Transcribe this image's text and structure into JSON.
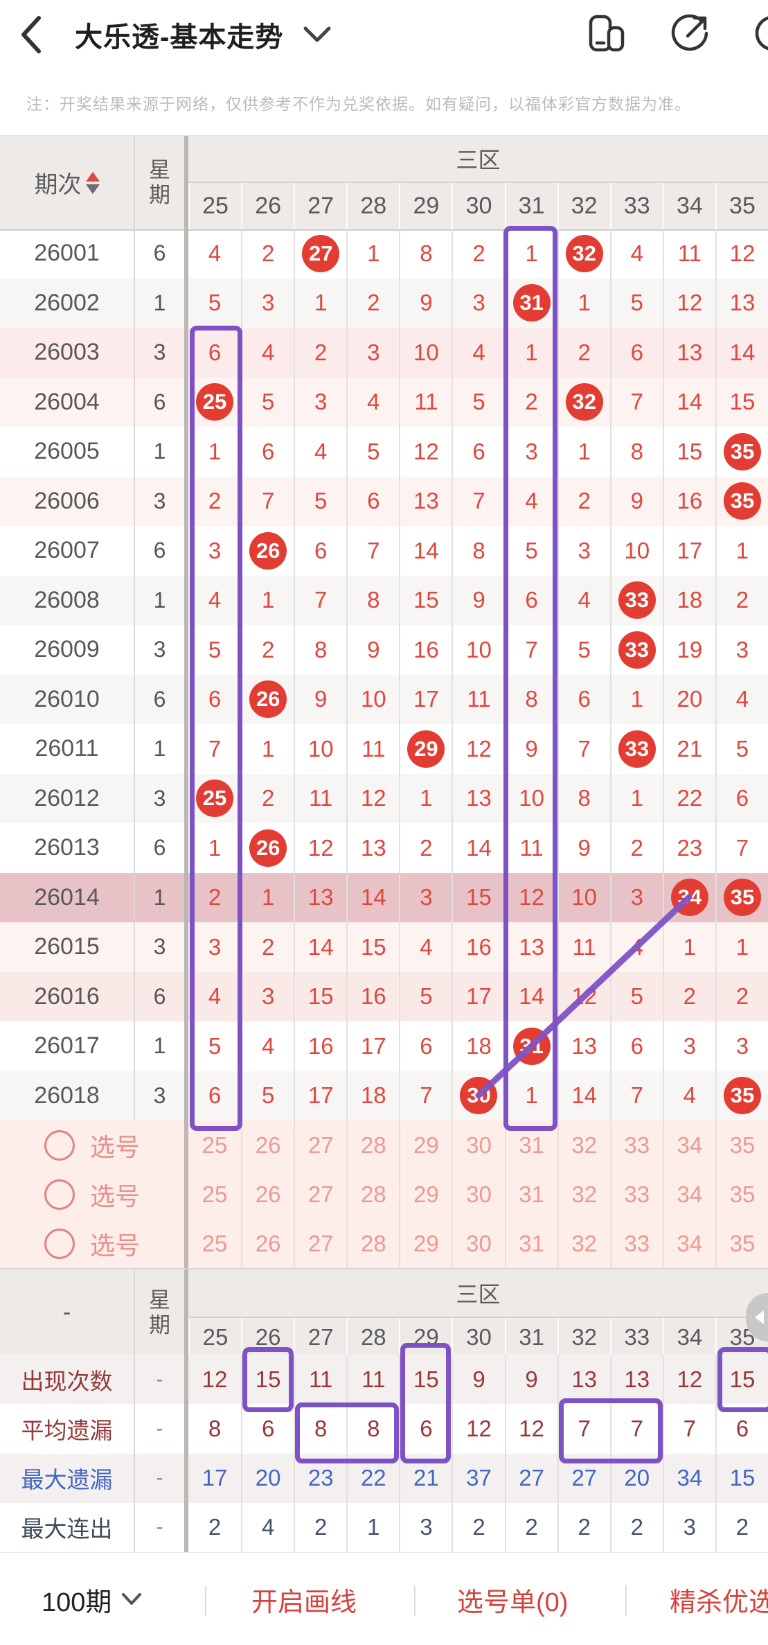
{
  "header": {
    "title": "大乐透-基本走势",
    "icons": [
      "back-icon",
      "dropdown-caret-icon",
      "multi-window-icon",
      "share-icon",
      "partial-circle-icon"
    ]
  },
  "notice": {
    "text": "注：开奖结果来源于网络，仅供参考不作为兑奖依据。如有疑问，以福体彩官方数据为准。"
  },
  "table": {
    "period_header": "期次",
    "week_header": "星期",
    "zone_header": "三区",
    "columns": [
      "25",
      "26",
      "27",
      "28",
      "29",
      "30",
      "31",
      "32",
      "33",
      "34",
      "35"
    ],
    "rows": [
      {
        "period": "26001",
        "week": "6",
        "cells": [
          "4",
          "2",
          "27",
          "1",
          "8",
          "2",
          "1",
          "32",
          "4",
          "11",
          "12"
        ],
        "balls": [
          2,
          7
        ],
        "bg": ""
      },
      {
        "period": "26002",
        "week": "1",
        "cells": [
          "5",
          "3",
          "1",
          "2",
          "9",
          "3",
          "31",
          "1",
          "5",
          "12",
          "13"
        ],
        "balls": [
          6
        ],
        "bg": "alt"
      },
      {
        "period": "26003",
        "week": "3",
        "cells": [
          "6",
          "4",
          "2",
          "3",
          "10",
          "4",
          "1",
          "2",
          "6",
          "13",
          "14"
        ],
        "balls": [],
        "bg": "pink3"
      },
      {
        "period": "26004",
        "week": "6",
        "cells": [
          "25",
          "5",
          "3",
          "4",
          "11",
          "5",
          "2",
          "32",
          "7",
          "14",
          "15"
        ],
        "balls": [
          0,
          7
        ],
        "bg": "pink1"
      },
      {
        "period": "26005",
        "week": "1",
        "cells": [
          "1",
          "6",
          "4",
          "5",
          "12",
          "6",
          "3",
          "1",
          "8",
          "15",
          "35"
        ],
        "balls": [
          10
        ],
        "bg": ""
      },
      {
        "period": "26006",
        "week": "3",
        "cells": [
          "2",
          "7",
          "5",
          "6",
          "13",
          "7",
          "4",
          "2",
          "9",
          "16",
          "35"
        ],
        "balls": [
          10
        ],
        "bg": "pink1"
      },
      {
        "period": "26007",
        "week": "6",
        "cells": [
          "3",
          "26",
          "6",
          "7",
          "14",
          "8",
          "5",
          "3",
          "10",
          "17",
          "1"
        ],
        "balls": [
          1
        ],
        "bg": ""
      },
      {
        "period": "26008",
        "week": "1",
        "cells": [
          "4",
          "1",
          "7",
          "8",
          "15",
          "9",
          "6",
          "4",
          "33",
          "18",
          "2"
        ],
        "balls": [
          8
        ],
        "bg": "alt"
      },
      {
        "period": "26009",
        "week": "3",
        "cells": [
          "5",
          "2",
          "8",
          "9",
          "16",
          "10",
          "7",
          "5",
          "33",
          "19",
          "3"
        ],
        "balls": [
          8
        ],
        "bg": ""
      },
      {
        "period": "26010",
        "week": "6",
        "cells": [
          "6",
          "26",
          "9",
          "10",
          "17",
          "11",
          "8",
          "6",
          "1",
          "20",
          "4"
        ],
        "balls": [
          1
        ],
        "bg": "alt"
      },
      {
        "period": "26011",
        "week": "1",
        "cells": [
          "7",
          "1",
          "10",
          "11",
          "29",
          "12",
          "9",
          "7",
          "33",
          "21",
          "5"
        ],
        "balls": [
          4,
          8
        ],
        "bg": ""
      },
      {
        "period": "26012",
        "week": "3",
        "cells": [
          "25",
          "2",
          "11",
          "12",
          "1",
          "13",
          "10",
          "8",
          "1",
          "22",
          "6"
        ],
        "balls": [
          0
        ],
        "bg": "alt"
      },
      {
        "period": "26013",
        "week": "6",
        "cells": [
          "1",
          "26",
          "12",
          "13",
          "2",
          "14",
          "11",
          "9",
          "2",
          "23",
          "7"
        ],
        "balls": [
          1
        ],
        "bg": ""
      },
      {
        "period": "26014",
        "week": "1",
        "cells": [
          "2",
          "1",
          "13",
          "14",
          "3",
          "15",
          "12",
          "10",
          "3",
          "34",
          "35"
        ],
        "balls": [
          9,
          10
        ],
        "bg": "hl"
      },
      {
        "period": "26015",
        "week": "3",
        "cells": [
          "3",
          "2",
          "14",
          "15",
          "4",
          "16",
          "13",
          "11",
          "4",
          "1",
          "1"
        ],
        "balls": [],
        "bg": "pink1"
      },
      {
        "period": "26016",
        "week": "6",
        "cells": [
          "4",
          "3",
          "15",
          "16",
          "5",
          "17",
          "14",
          "12",
          "5",
          "2",
          "2"
        ],
        "balls": [],
        "bg": "pink2"
      },
      {
        "period": "26017",
        "week": "1",
        "cells": [
          "5",
          "4",
          "16",
          "17",
          "6",
          "18",
          "31",
          "13",
          "6",
          "3",
          "3"
        ],
        "balls": [
          6
        ],
        "bg": ""
      },
      {
        "period": "26018",
        "week": "3",
        "cells": [
          "6",
          "5",
          "17",
          "18",
          "7",
          "30",
          "1",
          "14",
          "7",
          "4",
          "35"
        ],
        "balls": [
          5,
          10
        ],
        "bg": "alt"
      }
    ],
    "pick_label": "选号",
    "pick_rows": 3
  },
  "stats": {
    "corner": "-",
    "week_header": "星期",
    "zone_header": "三区",
    "columns": [
      "25",
      "26",
      "27",
      "28",
      "29",
      "30",
      "31",
      "32",
      "33",
      "34",
      "35"
    ],
    "rows": [
      {
        "label": "出现次数",
        "week": "-",
        "values": [
          "12",
          "15",
          "11",
          "11",
          "15",
          "9",
          "9",
          "13",
          "13",
          "12",
          "15"
        ],
        "color": "darkred"
      },
      {
        "label": "平均遗漏",
        "week": "-",
        "values": [
          "8",
          "6",
          "8",
          "8",
          "6",
          "12",
          "12",
          "7",
          "7",
          "7",
          "6"
        ],
        "color": "darkred"
      },
      {
        "label": "最大遗漏",
        "week": "-",
        "values": [
          "17",
          "20",
          "23",
          "22",
          "21",
          "37",
          "27",
          "27",
          "20",
          "34",
          "15"
        ],
        "color": "blue"
      },
      {
        "label": "最大连出",
        "week": "-",
        "values": [
          "2",
          "4",
          "2",
          "1",
          "3",
          "2",
          "2",
          "2",
          "2",
          "3",
          "2"
        ],
        "color": "dark"
      }
    ]
  },
  "bottombar": {
    "periods": "100期",
    "draw_line": "开启画线",
    "pick_list": "选号单(0)",
    "premium": "精杀优选"
  },
  "colors": {
    "number_red": "#e0473e",
    "ball_red": "#e23c33",
    "annotation_purple": "#7e52c5",
    "highlight_row": "#e7c2c7",
    "stat_darkred": "#96393a",
    "stat_blue": "#4467c4",
    "bottom_red": "#d8423c"
  }
}
